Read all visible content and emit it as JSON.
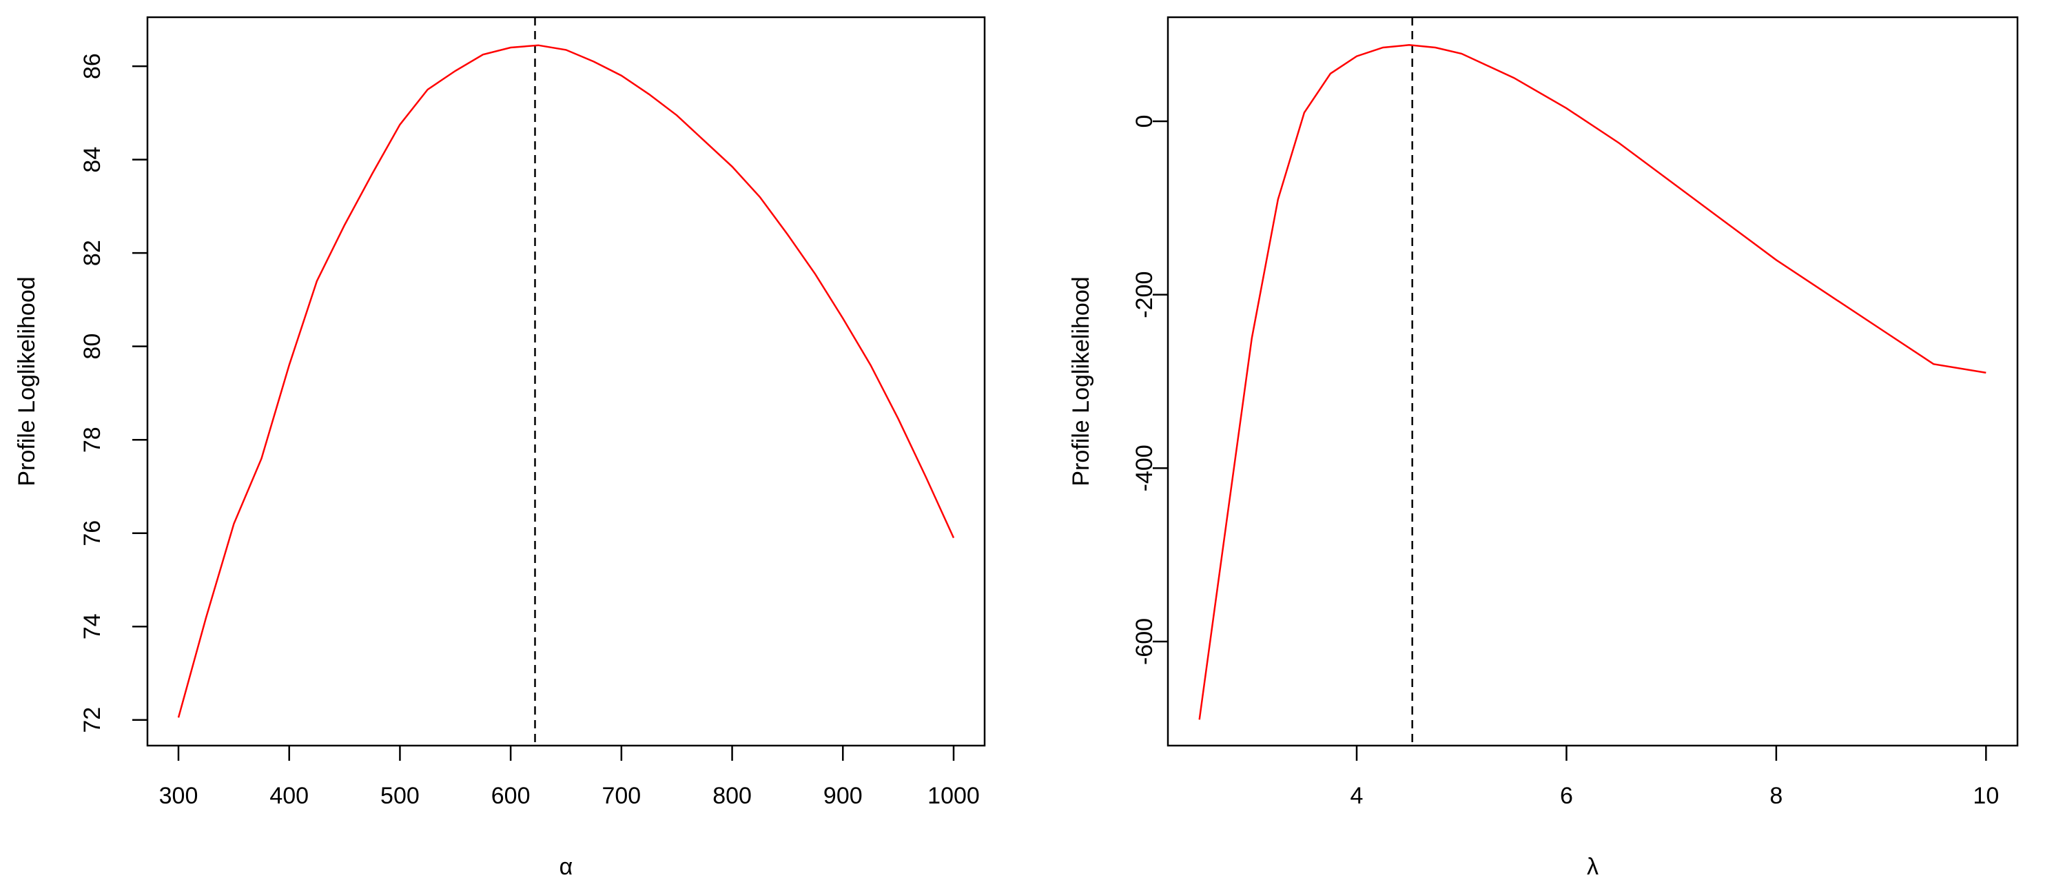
{
  "colors": {
    "curve": "#ff0000",
    "reference_line": "#000000",
    "axes": "#000000",
    "background": "#ffffff"
  },
  "chart_data": [
    {
      "type": "line",
      "xlabel": "α",
      "ylabel": "Profile Loglikelihood",
      "xlim": [
        272,
        1028
      ],
      "ylim": [
        71.45,
        87.05
      ],
      "xticks": [
        300,
        400,
        500,
        600,
        700,
        800,
        900,
        1000
      ],
      "yticks": [
        72,
        74,
        76,
        78,
        80,
        82,
        84,
        86
      ],
      "xtick_labels": [
        "300",
        "400",
        "500",
        "600",
        "700",
        "800",
        "900",
        "1000"
      ],
      "ytick_labels": [
        "72",
        "74",
        "76",
        "78",
        "80",
        "82",
        "84",
        "86"
      ],
      "vline_x": 622,
      "grid": false,
      "series": [
        {
          "x": [
            300,
            325,
            350,
            375,
            400,
            425,
            450,
            475,
            500,
            525,
            550,
            575,
            600,
            625,
            650,
            675,
            700,
            725,
            750,
            775,
            800,
            825,
            850,
            875,
            900,
            925,
            950,
            975,
            1000
          ],
          "y": [
            72.05,
            74.2,
            76.2,
            77.6,
            79.6,
            81.4,
            82.6,
            83.7,
            84.75,
            85.5,
            85.9,
            86.25,
            86.4,
            86.45,
            86.35,
            86.1,
            85.8,
            85.4,
            84.95,
            84.4,
            83.85,
            83.2,
            82.4,
            81.55,
            80.6,
            79.6,
            78.45,
            77.2,
            75.9
          ]
        }
      ]
    },
    {
      "type": "line",
      "xlabel": "λ",
      "ylabel": "Profile Loglikelihood",
      "xlim": [
        2.2,
        10.3
      ],
      "ylim": [
        -720,
        120
      ],
      "xticks": [
        4,
        6,
        8,
        10
      ],
      "yticks": [
        -600,
        -400,
        -200,
        0
      ],
      "xtick_labels": [
        "4",
        "6",
        "8",
        "10"
      ],
      "ytick_labels": [
        "-600",
        "-400",
        "-200",
        "0"
      ],
      "vline_x": 4.53,
      "grid": false,
      "series": [
        {
          "x": [
            2.5,
            2.75,
            3.0,
            3.25,
            3.5,
            3.75,
            4.0,
            4.25,
            4.5,
            4.75,
            5.0,
            5.5,
            6.0,
            6.5,
            7.0,
            7.5,
            8.0,
            8.5,
            9.0,
            9.5,
            10.0
          ],
          "y": [
            -690,
            -470,
            -250,
            -90,
            10,
            55,
            75,
            85,
            88,
            85,
            78,
            50,
            15,
            -25,
            -70,
            -115,
            -160,
            -200,
            -240,
            -280,
            -290
          ]
        }
      ]
    }
  ]
}
